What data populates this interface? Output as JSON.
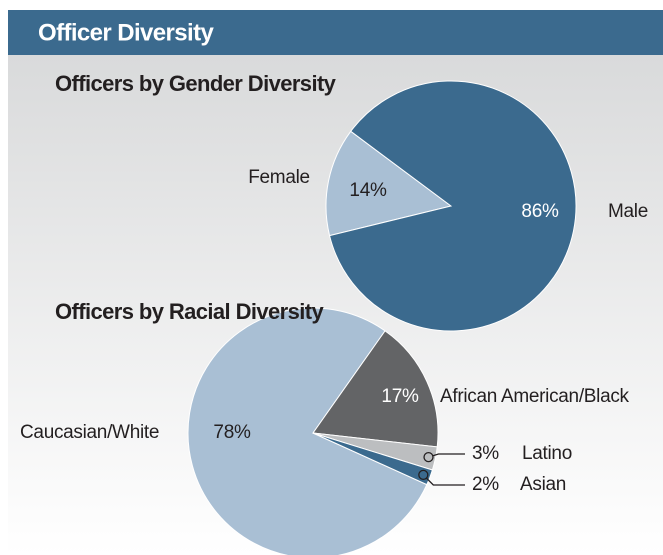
{
  "header": {
    "title": "Officer Diversity"
  },
  "chart_data": [
    {
      "type": "pie",
      "title": "Officers by Gender Diversity",
      "categories": [
        "Female",
        "Male"
      ],
      "values": [
        14,
        86
      ],
      "value_labels": [
        "14%",
        "86%"
      ],
      "colors": [
        "#a9bfd4",
        "#3b6a8e"
      ]
    },
    {
      "type": "pie",
      "title": "Officers by Racial Diversity",
      "categories": [
        "Caucasian/White",
        "African American/Black",
        "Latino",
        "Asian"
      ],
      "values": [
        78,
        17,
        3,
        2
      ],
      "value_labels": [
        "78%",
        "17%",
        "3%",
        "2%"
      ],
      "colors": [
        "#a9bfd4",
        "#636466",
        "#bcbec0",
        "#3b6a8e"
      ]
    }
  ]
}
